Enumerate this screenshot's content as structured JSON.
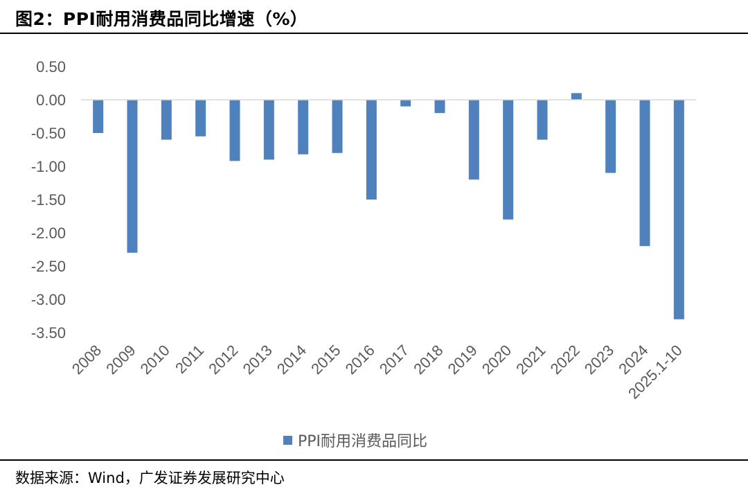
{
  "header": {
    "title": "图2：PPI耐用消费品同比增速（%）"
  },
  "footer": {
    "source": "数据来源：Wind，广发证券发展研究中心"
  },
  "colors": {
    "bar": "#4f81bd",
    "axis": "#d9d9d9",
    "text": "#595959"
  },
  "chart_data": {
    "type": "bar",
    "title": "PPI耐用消费品同比增速（%）",
    "categories": [
      "2008",
      "2009",
      "2010",
      "2011",
      "2012",
      "2013",
      "2014",
      "2015",
      "2016",
      "2017",
      "2018",
      "2019",
      "2020",
      "2021",
      "2022",
      "2023",
      "2024",
      "2025.1-10"
    ],
    "series": [
      {
        "name": "PPI耐用消费品同比",
        "values": [
          -0.5,
          -2.3,
          -0.6,
          -0.55,
          -0.92,
          -0.9,
          -0.82,
          -0.8,
          -1.5,
          -0.1,
          -0.2,
          -1.2,
          -1.8,
          -0.6,
          0.1,
          -1.1,
          -2.2,
          -3.3
        ]
      }
    ],
    "ylim": [
      -3.5,
      0.5
    ],
    "yticks": [
      "0.50",
      "0.00",
      "-0.50",
      "-1.00",
      "-1.50",
      "-2.00",
      "-2.50",
      "-3.00",
      "-3.50"
    ],
    "ytick_values": [
      0.5,
      0,
      -0.5,
      -1,
      -1.5,
      -2,
      -2.5,
      -3,
      -3.5
    ],
    "xlabel": "",
    "ylabel": "",
    "legend": {
      "position": "bottom",
      "label": "PPI耐用消费品同比"
    }
  }
}
